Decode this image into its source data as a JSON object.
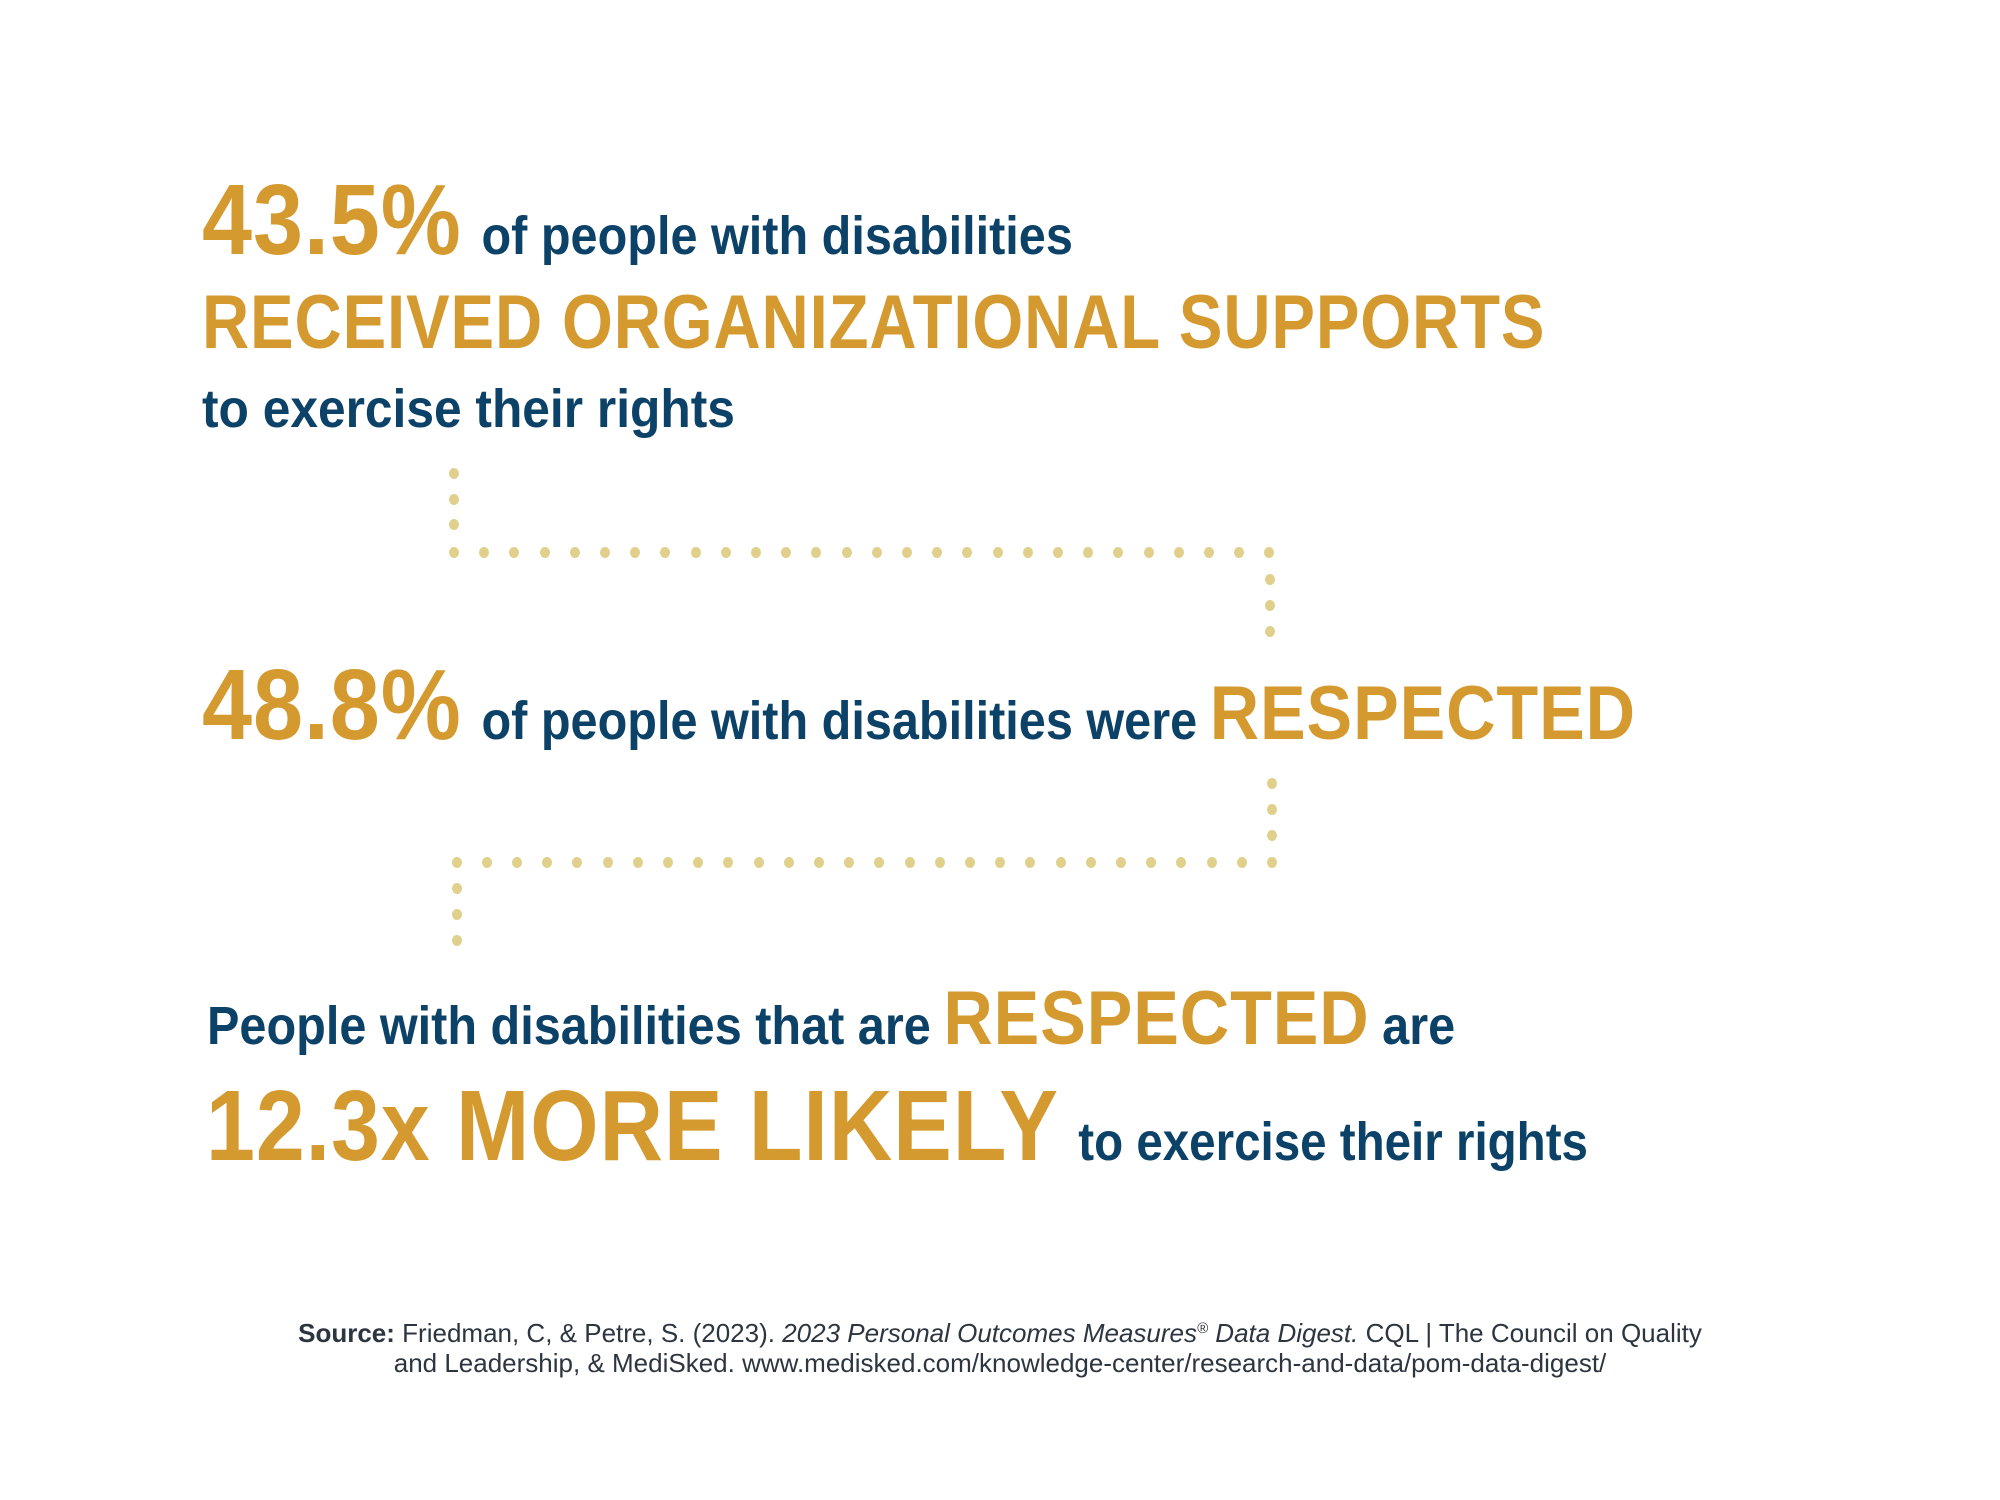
{
  "colors": {
    "accent_gold": "#D49A2F",
    "navy": "#0C4168",
    "connector_dots": "#E0D08C",
    "source_text": "#2D3540",
    "background": "#FFFFFF"
  },
  "stat1": {
    "value": "43.5%",
    "line1_rest": "of people with disabilities",
    "highlight": "RECEIVED ORGANIZATIONAL SUPPORTS",
    "line3": "to exercise their rights"
  },
  "stat2": {
    "value": "48.8%",
    "text": "of people with disabilities were",
    "highlight": "RESPECTED"
  },
  "stat3": {
    "line1_prefix": "People with disabilities that are",
    "line1_highlight": "RESPECTED",
    "line1_suffix": "are",
    "multiplier": "12.3x MORE LIKELY",
    "line2_suffix": "to exercise their rights"
  },
  "connectors": [
    {
      "name": "connector-1",
      "from": "stat1",
      "to": "stat2"
    },
    {
      "name": "connector-2",
      "from": "stat2",
      "to": "stat3"
    }
  ],
  "source": {
    "label": "Source:",
    "authors": "Friedman, C, & Petre, S. (2023).",
    "title": "2023 Personal Outcomes Measures",
    "registered_mark": "®",
    "title_end": "Data Digest.",
    "publisher_line1": "CQL | The Council on Quality",
    "publisher_line2": "and Leadership, & MediSked. www.medisked.com/knowledge-center/research-and-data/pom-data-digest/"
  }
}
